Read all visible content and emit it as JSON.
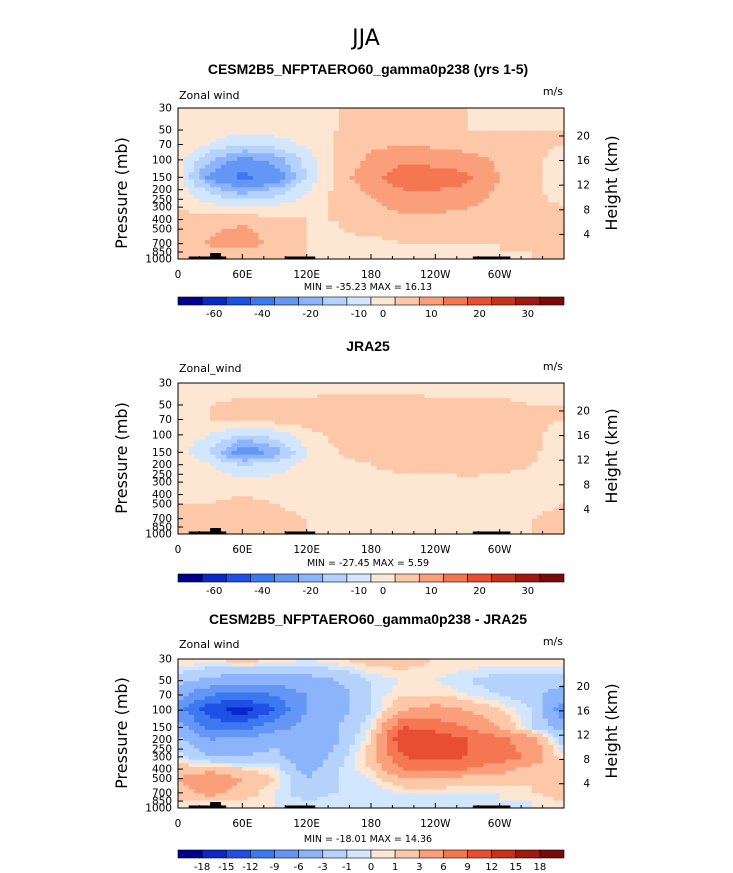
{
  "suptitle": "JJA",
  "colors": [
    "#00008c",
    "#0a28c8",
    "#1e50e6",
    "#3c78f0",
    "#6496f5",
    "#8cb4fa",
    "#b4d2fc",
    "#d2e6fe",
    "#fde6d2",
    "#fcc8a8",
    "#fa9f7a",
    "#f57752",
    "#e84f32",
    "#c83218",
    "#a01810",
    "#780a0a"
  ],
  "ticks": {
    "pressure": [
      "30",
      "50",
      "70",
      "100",
      "150",
      "200",
      "250",
      "300",
      "400",
      "500",
      "700",
      "850",
      "1000"
    ],
    "longitude": [
      "0",
      "60E",
      "120E",
      "180",
      "120W",
      "60W"
    ],
    "height_upper": [
      "20",
      "16",
      "12",
      "8",
      "4"
    ],
    "height_lower": [
      "20",
      "16",
      "12",
      "8",
      "4"
    ]
  },
  "chart_data": [
    {
      "type": "heatmap",
      "title": "CESM2B5_NFPTAERO60_gamma0p238 (yrs 1-5)",
      "variable_label": "Zonal wind",
      "units": "m/s",
      "xlabel": "",
      "ylabel": "Pressure (mb)",
      "ylabel_right": "Height (km)",
      "stats": "MIN = -35.23   MAX =  16.13",
      "colorbar_labels": [
        "-60",
        "-40",
        "-20",
        "-10",
        "0",
        "10",
        "20",
        "30"
      ],
      "field": {
        "lon": [
          0,
          30,
          60,
          90,
          120,
          150,
          180,
          210,
          240,
          270,
          300,
          330,
          360
        ],
        "pressure_mb": [
          30,
          50,
          70,
          100,
          150,
          200,
          300,
          400,
          500,
          700,
          850,
          1000
        ],
        "u_ms": [
          [
            0,
            0,
            0,
            0,
            0,
            0,
            0,
            0,
            0,
            0,
            0,
            0,
            0
          ],
          [
            0,
            -2,
            -4,
            -3,
            -1,
            0,
            1,
            1,
            1,
            0,
            0,
            0,
            0
          ],
          [
            0,
            -5,
            -10,
            -8,
            -4,
            1,
            4,
            5,
            4,
            3,
            2,
            1,
            0
          ],
          [
            -2,
            -15,
            -22,
            -18,
            -8,
            2,
            6,
            9,
            8,
            7,
            4,
            1,
            -2
          ],
          [
            -3,
            -22,
            -33,
            -25,
            -10,
            3,
            8,
            14,
            13,
            11,
            5,
            1,
            -3
          ],
          [
            -2,
            -12,
            -18,
            -14,
            -6,
            2,
            6,
            10,
            10,
            9,
            4,
            1,
            -2
          ],
          [
            0,
            -3,
            -5,
            -4,
            -2,
            1,
            4,
            6,
            6,
            5,
            3,
            1,
            0
          ],
          [
            1,
            2,
            3,
            1,
            0,
            0,
            2,
            4,
            4,
            4,
            2,
            1,
            1
          ],
          [
            2,
            4,
            6,
            3,
            0,
            0,
            1,
            2,
            2,
            2,
            1,
            1,
            2
          ],
          [
            2,
            6,
            7,
            4,
            0,
            -1,
            -1,
            0,
            0,
            0,
            0,
            1,
            2
          ],
          [
            1,
            3,
            4,
            2,
            0,
            -1,
            -1,
            -1,
            0,
            0,
            0,
            0,
            1
          ],
          [
            0,
            1,
            1,
            1,
            0,
            0,
            0,
            0,
            0,
            0,
            0,
            0,
            0
          ]
        ]
      }
    },
    {
      "type": "heatmap",
      "title": "JRA25",
      "variable_label": "Zonal_wind",
      "units": "m/s",
      "xlabel": "",
      "ylabel": "Pressure (mb)",
      "ylabel_right": "Height (km)",
      "stats": "MIN = -27.45   MAX =   5.59",
      "colorbar_labels": [
        "-60",
        "-40",
        "-20",
        "-10",
        "0",
        "10",
        "20",
        "30"
      ],
      "field": {
        "lon": [
          0,
          30,
          60,
          90,
          120,
          150,
          180,
          210,
          240,
          270,
          300,
          330,
          360
        ],
        "pressure_mb": [
          30,
          50,
          70,
          100,
          150,
          200,
          300,
          400,
          500,
          700,
          850,
          1000
        ],
        "u_ms": [
          [
            -2,
            -2,
            -2,
            -2,
            -2,
            -2,
            -2,
            -2,
            -2,
            -2,
            -2,
            -2,
            -2
          ],
          [
            0,
            0,
            1,
            1,
            1,
            2,
            2,
            2,
            1,
            1,
            1,
            0,
            0
          ],
          [
            0,
            0,
            0,
            2,
            3,
            3,
            4,
            4,
            3,
            3,
            2,
            1,
            0
          ],
          [
            -2,
            -5,
            -10,
            -8,
            -2,
            2,
            3,
            4,
            4,
            4,
            3,
            1,
            -2
          ],
          [
            -3,
            -10,
            -26,
            -18,
            -5,
            0,
            2,
            3,
            3,
            4,
            3,
            1,
            -3
          ],
          [
            -2,
            -5,
            -10,
            -8,
            -3,
            -1,
            0,
            1,
            1,
            2,
            1,
            0,
            -2
          ],
          [
            -1,
            -2,
            -3,
            -3,
            -2,
            -1,
            -1,
            -1,
            -1,
            -1,
            -1,
            -1,
            -1
          ],
          [
            -1,
            -1,
            0,
            -1,
            -2,
            -1,
            -1,
            -1,
            -1,
            -1,
            -1,
            -1,
            -1
          ],
          [
            0,
            0,
            1,
            0,
            -1,
            -1,
            -1,
            -2,
            -2,
            -2,
            -1,
            -1,
            0
          ],
          [
            1,
            2,
            3,
            1,
            0,
            -1,
            -1,
            -2,
            -2,
            -2,
            -1,
            0,
            1
          ],
          [
            1,
            1,
            2,
            1,
            0,
            0,
            -1,
            -1,
            -1,
            -1,
            0,
            0,
            1
          ],
          [
            0,
            0,
            1,
            0,
            0,
            0,
            0,
            0,
            0,
            0,
            0,
            0,
            0
          ]
        ]
      }
    },
    {
      "type": "heatmap",
      "title": "CESM2B5_NFPTAERO60_gamma0p238 - JRA25",
      "variable_label": "Zonal wind",
      "units": "m/s",
      "xlabel": "",
      "ylabel": "Pressure (mb)",
      "ylabel_right": "Height (km)",
      "stats": "MIN = -18.01   MAX =  14.36",
      "colorbar_labels": [
        "-18",
        "-15",
        "-12",
        "-9",
        "-6",
        "-3",
        "-1",
        "0",
        "1",
        "3",
        "6",
        "9",
        "12",
        "15",
        "18"
      ],
      "field": {
        "lon": [
          0,
          30,
          60,
          90,
          120,
          150,
          180,
          210,
          240,
          270,
          300,
          330,
          360
        ],
        "pressure_mb": [
          30,
          50,
          70,
          100,
          150,
          200,
          300,
          400,
          500,
          700,
          850,
          1000
        ],
        "u_ms": [
          [
            1,
            1,
            2,
            1,
            0,
            1,
            2,
            2,
            1,
            1,
            1,
            1,
            1
          ],
          [
            -2,
            -4,
            -5,
            -5,
            -4,
            -3,
            -1,
            0,
            0,
            -1,
            -2,
            -2,
            -2
          ],
          [
            -5,
            -9,
            -10,
            -9,
            -6,
            -4,
            -1,
            1,
            1,
            0,
            -1,
            -2,
            -5
          ],
          [
            -8,
            -14,
            -17,
            -12,
            -6,
            -4,
            -1,
            3,
            4,
            3,
            1,
            -1,
            -8
          ],
          [
            -4,
            -10,
            -10,
            -7,
            -5,
            -3,
            0,
            9,
            8,
            6,
            3,
            -1,
            -4
          ],
          [
            -2,
            -6,
            -5,
            -4,
            -6,
            -3,
            1,
            12,
            11,
            9,
            7,
            4,
            -2
          ],
          [
            0,
            -3,
            -3,
            -2,
            -5,
            -2,
            2,
            9,
            10,
            9,
            8,
            5,
            0
          ],
          [
            2,
            2,
            1,
            0,
            -4,
            -1,
            1,
            6,
            6,
            6,
            4,
            2,
            2
          ],
          [
            3,
            5,
            3,
            1,
            -3,
            -1,
            0,
            3,
            3,
            2,
            2,
            1,
            3
          ],
          [
            2,
            4,
            2,
            0,
            -2,
            -1,
            -1,
            0,
            0,
            0,
            0,
            1,
            2
          ],
          [
            1,
            1,
            1,
            0,
            -1,
            0,
            -1,
            -1,
            0,
            0,
            0,
            0,
            1
          ],
          [
            0,
            0,
            0,
            0,
            0,
            0,
            0,
            0,
            0,
            0,
            0,
            0,
            0
          ]
        ]
      }
    }
  ]
}
